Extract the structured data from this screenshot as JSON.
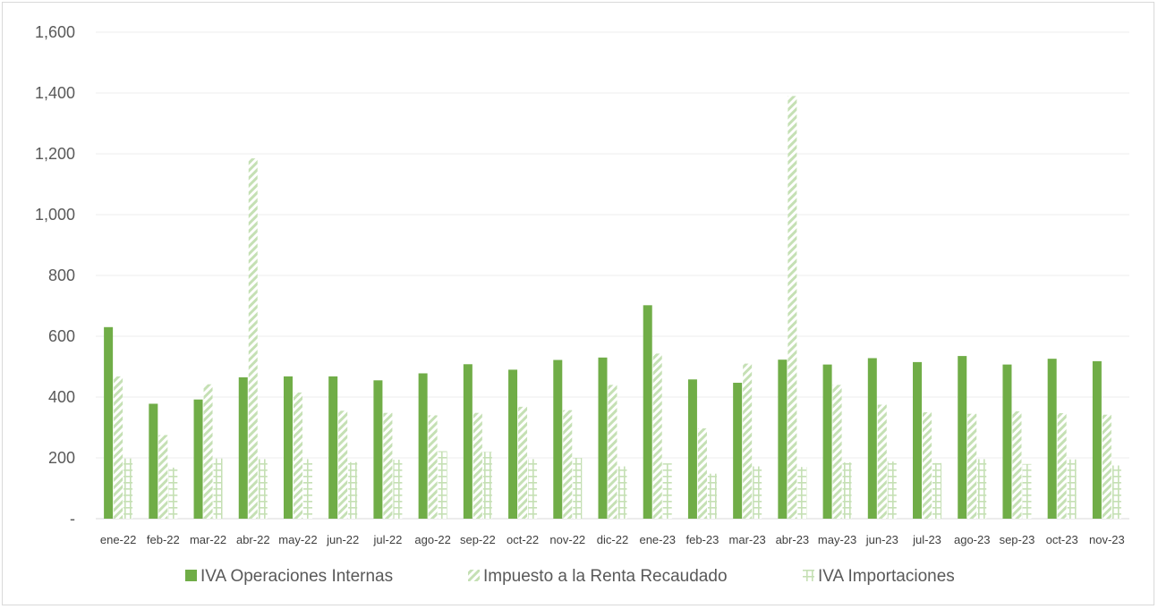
{
  "chart_data": {
    "type": "bar",
    "title": "",
    "xlabel": "",
    "ylabel": "",
    "ylim": [
      0,
      1600
    ],
    "yticks": [
      0,
      200,
      400,
      600,
      800,
      1000,
      1200,
      1400,
      1600
    ],
    "ytick_labels": [
      "-",
      "200",
      "400",
      "600",
      "800",
      "1,000",
      "1,200",
      "1,400",
      "1,600"
    ],
    "grid": true,
    "legend_position": "bottom",
    "categories": [
      "ene-22",
      "feb-22",
      "mar-22",
      "abr-22",
      "may-22",
      "jun-22",
      "jul-22",
      "ago-22",
      "sep-22",
      "oct-22",
      "nov-22",
      "dic-22",
      "ene-23",
      "feb-23",
      "mar-23",
      "abr-23",
      "may-23",
      "jun-23",
      "jul-23",
      "ago-23",
      "sep-23",
      "oct-23",
      "nov-23"
    ],
    "series": [
      {
        "name": "IVA Operaciones Internas",
        "color": "#70ad47",
        "pattern": "solid",
        "values": [
          630,
          378,
          392,
          465,
          468,
          468,
          455,
          478,
          508,
          490,
          522,
          530,
          702,
          458,
          447,
          523,
          507,
          528,
          515,
          535,
          507,
          526,
          518
        ]
      },
      {
        "name": "Impuesto a la Renta Recaudado",
        "color": "#c5e0b4",
        "pattern": "diagonal",
        "values": [
          468,
          275,
          442,
          1185,
          415,
          355,
          348,
          340,
          348,
          368,
          357,
          440,
          543,
          297,
          510,
          1390,
          440,
          375,
          350,
          345,
          353,
          347,
          342
        ]
      },
      {
        "name": "IVA Importaciones",
        "color": "#c5e0b4",
        "pattern": "grid",
        "values": [
          198,
          168,
          198,
          196,
          196,
          186,
          194,
          222,
          220,
          196,
          200,
          172,
          182,
          148,
          172,
          170,
          185,
          188,
          183,
          196,
          180,
          195,
          175
        ]
      }
    ]
  }
}
